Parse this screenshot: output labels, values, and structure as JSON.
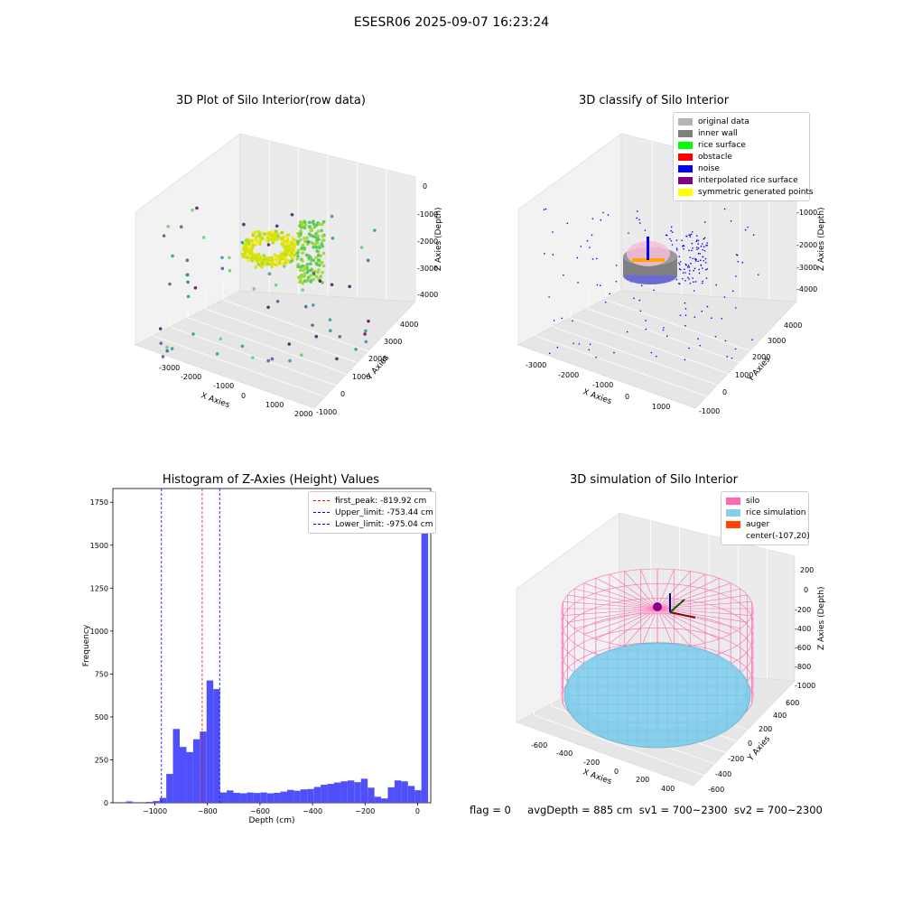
{
  "suptitle": "ESESR06 2025-09-07 16:23:24",
  "footer": {
    "flag": "flag = 0",
    "avg_depth": "avgDepth = 885 cm",
    "sv1": "sv1 = 700~2300",
    "sv2": "sv2 = 700~2300"
  },
  "chart_data": [
    {
      "type": "scatter",
      "subtype": "3d",
      "title": "3D Plot of Silo Interior(row data)",
      "xlabel": "X Axies",
      "ylabel": "Y Axies",
      "zlabel": "Z Axies (Depth)",
      "x_ticks": [
        "-3000",
        "-2000",
        "-1000",
        "0",
        "1000",
        "2000"
      ],
      "y_ticks": [
        "-1000",
        "0",
        "1000",
        "2000",
        "3000",
        "4000"
      ],
      "z_ticks": [
        "0",
        "-1000",
        "-2000",
        "-3000",
        "-4000"
      ],
      "colormap": "viridis"
    },
    {
      "type": "scatter",
      "subtype": "3d",
      "title": "3D classify of Silo Interior",
      "xlabel": "X Axies",
      "ylabel": "Y Axies",
      "zlabel": "Z Axies (Depth)",
      "x_ticks": [
        "-3000",
        "-2000",
        "-1000",
        "0",
        "1000"
      ],
      "y_ticks": [
        "-1000",
        "0",
        "1000",
        "2000",
        "3000",
        "4000"
      ],
      "z_ticks": [
        "-1000",
        "-2000",
        "-3000",
        "-4000"
      ],
      "legend_position": "top-right",
      "legend": [
        {
          "label": "original data",
          "color": "#b4b4b4"
        },
        {
          "label": "inner wall",
          "color": "#808080"
        },
        {
          "label": "rice surface",
          "color": "#00ff00"
        },
        {
          "label": "obstacle",
          "color": "#ff0000"
        },
        {
          "label": "noise",
          "color": "#0000ff"
        },
        {
          "label": "interpolated rice surface",
          "color": "#800080"
        },
        {
          "label": "symmetric generated points",
          "color": "#ffff00"
        }
      ]
    },
    {
      "type": "bar",
      "subtype": "histogram",
      "title": "Histogram of Z-Axies (Height) Values",
      "xlabel": "Depth (cm)",
      "ylabel": "Frequency",
      "xlim": [
        -1160,
        50
      ],
      "ylim": [
        0,
        1830
      ],
      "x_ticks": [
        -1000,
        -800,
        -600,
        -400,
        -200,
        0
      ],
      "y_ticks": [
        0,
        250,
        500,
        750,
        1000,
        1250,
        1500,
        1750
      ],
      "bin_width": 27.5,
      "bar_color": "#5050fa",
      "bins": [
        {
          "x": -1110,
          "count": 8
        },
        {
          "x": -1082.5,
          "count": 0
        },
        {
          "x": -1055,
          "count": 0
        },
        {
          "x": -1027.5,
          "count": 5
        },
        {
          "x": -1000,
          "count": 10
        },
        {
          "x": -972.5,
          "count": 28
        },
        {
          "x": -945,
          "count": 168
        },
        {
          "x": -917.5,
          "count": 430
        },
        {
          "x": -890,
          "count": 325
        },
        {
          "x": -862.5,
          "count": 295
        },
        {
          "x": -835,
          "count": 370
        },
        {
          "x": -807.5,
          "count": 415
        },
        {
          "x": -780,
          "count": 712
        },
        {
          "x": -752.5,
          "count": 662
        },
        {
          "x": -725,
          "count": 60
        },
        {
          "x": -697.5,
          "count": 72
        },
        {
          "x": -670,
          "count": 58
        },
        {
          "x": -642.5,
          "count": 55
        },
        {
          "x": -615,
          "count": 60
        },
        {
          "x": -587.5,
          "count": 57
        },
        {
          "x": -560,
          "count": 60
        },
        {
          "x": -532.5,
          "count": 55
        },
        {
          "x": -505,
          "count": 58
        },
        {
          "x": -477.5,
          "count": 65
        },
        {
          "x": -450,
          "count": 75
        },
        {
          "x": -422.5,
          "count": 70
        },
        {
          "x": -395,
          "count": 78
        },
        {
          "x": -367.5,
          "count": 80
        },
        {
          "x": -340,
          "count": 92
        },
        {
          "x": -312.5,
          "count": 105
        },
        {
          "x": -285,
          "count": 110
        },
        {
          "x": -257.5,
          "count": 118
        },
        {
          "x": -230,
          "count": 125
        },
        {
          "x": -202.5,
          "count": 130
        },
        {
          "x": -175,
          "count": 120
        },
        {
          "x": -147.5,
          "count": 140
        },
        {
          "x": -120,
          "count": 88
        },
        {
          "x": -92.5,
          "count": 35
        },
        {
          "x": -65,
          "count": 25
        },
        {
          "x": -37.5,
          "count": 90
        },
        {
          "x": -10,
          "count": 130
        },
        {
          "x": 17.5,
          "count": 125
        },
        {
          "x": 45,
          "count": 98
        },
        {
          "x": 72.5,
          "count": 73
        },
        {
          "x": 100,
          "count": 1720
        }
      ],
      "vlines": [
        {
          "label": "first_peak: -819.92 cm",
          "x": -819.92,
          "color": "#ff0000"
        },
        {
          "label": "Upper_limit: -753.44 cm",
          "x": -753.44,
          "color": "#0000ff"
        },
        {
          "label": "Lower_limit: -975.04 cm",
          "x": -975.04,
          "color": "#0000ff"
        }
      ],
      "legend_position": "top-right"
    },
    {
      "type": "scatter",
      "subtype": "3d-surface",
      "title": "3D simulation of Silo Interior",
      "xlabel": "X Axies",
      "ylabel": "Y Axies",
      "zlabel": "Z Axies (Depth)",
      "x_ticks": [
        "-600",
        "-400",
        "-200",
        "0",
        "200",
        "400"
      ],
      "y_ticks": [
        "-600",
        "-400",
        "-200",
        "0",
        "200",
        "400",
        "600"
      ],
      "z_ticks": [
        "200",
        "0",
        "-200",
        "-400",
        "-600",
        "-800",
        "-1000"
      ],
      "legend_position": "top-right",
      "legend": [
        {
          "label": "silo",
          "color": "#ff69b4"
        },
        {
          "label": "rice simulation",
          "color": "#87ceeb"
        },
        {
          "label": "auger",
          "color": "#ff4500"
        },
        {
          "label": "center(-107,20)",
          "color": "#ffffff"
        }
      ]
    }
  ]
}
